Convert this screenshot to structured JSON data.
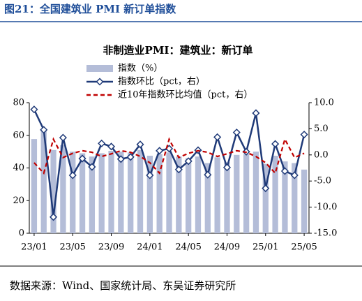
{
  "header": {
    "title": "图21：全国建筑业 PMI 新订单指数"
  },
  "source": "数据来源：Wind、国家统计局、东吴证券研究所",
  "chart_data": {
    "type": "bar",
    "title": "非制造业PMI：建筑业：新订单",
    "categories": [
      "23/01",
      null,
      null,
      null,
      "23/05",
      null,
      null,
      null,
      "23/09",
      null,
      null,
      null,
      "24/01",
      null,
      null,
      null,
      "24/05",
      null,
      null,
      null,
      "24/09",
      null,
      null,
      null,
      "25/01",
      null,
      null,
      null,
      "25/05"
    ],
    "series": [
      {
        "name": "指数（%）",
        "type": "bar",
        "color": "#b4bdd8",
        "axis": "y",
        "values": [
          57.7,
          63,
          51,
          54,
          50,
          49,
          47,
          49,
          50.5,
          50,
          49.5,
          51,
          47.5,
          48.5,
          49.5,
          47,
          46,
          47,
          43,
          46.5,
          43.5,
          48,
          48.5,
          50,
          42.5,
          47.5,
          44,
          43,
          39
        ]
      },
      {
        "name": "指数环比（pct，右）",
        "type": "line",
        "color": "#1f3a78",
        "axis": "y2",
        "marker": "diamond",
        "values": [
          8.7,
          4.8,
          -11.9,
          3.3,
          -3.9,
          -0.7,
          -2.3,
          2.2,
          1.6,
          -0.8,
          -0.4,
          2.0,
          -3.9,
          0.8,
          1.2,
          -2.8,
          -1.2,
          0.9,
          -3.8,
          3.4,
          -2.4,
          4.3,
          0.6,
          8.0,
          -6.4,
          2.1,
          -3.1,
          -3.9,
          3.9
        ]
      },
      {
        "name": "近10年指数环比均值（pct，右）",
        "type": "line",
        "color": "#c00000",
        "axis": "y2",
        "line_style": "dashed",
        "values": [
          -1.5,
          -3.5,
          3.0,
          -0.5,
          0.3,
          0.8,
          0.5,
          -0.3,
          0.2,
          0.8,
          0.5,
          -0.3,
          -1.5,
          -3.5,
          3.0,
          -0.5,
          0.3,
          0.8,
          0.5,
          -0.3,
          0.2,
          0.8,
          0.5,
          -0.3,
          -1.5,
          -3.5,
          3.0,
          -0.5,
          0.3
        ]
      }
    ],
    "ylim": [
      0,
      80
    ],
    "yticks": [
      0,
      20,
      40,
      60,
      80
    ],
    "y2lim": [
      -15,
      10
    ],
    "y2ticks": [
      {
        "value": 10,
        "label": "10.0"
      },
      {
        "value": 5,
        "label": "5.0"
      },
      {
        "value": 0,
        "label": "0.0"
      },
      {
        "value": -5,
        "label": "-5.0"
      },
      {
        "value": -10,
        "label": "-10.0"
      },
      {
        "value": -15,
        "label": "-15.0"
      }
    ],
    "grid": false
  }
}
